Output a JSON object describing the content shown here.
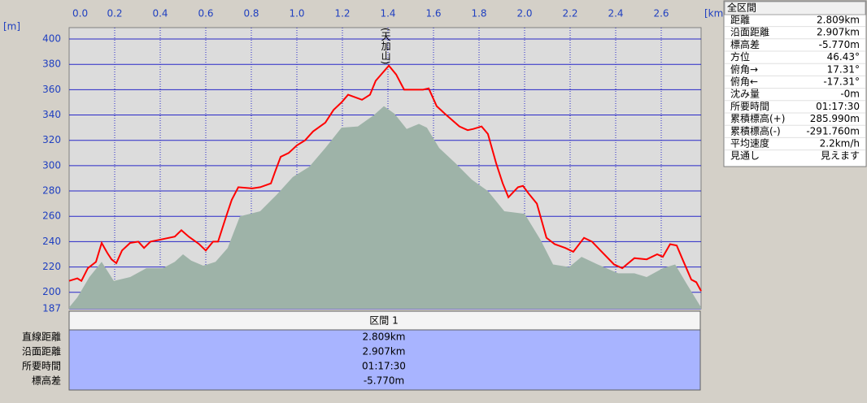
{
  "chart_data": {
    "type": "profile",
    "x_unit": "[km]",
    "y_unit": "[m]",
    "xlim": [
      0,
      2.775
    ],
    "ylim": [
      187,
      409
    ],
    "xticks": [
      {
        "value": 0,
        "label": "0.0"
      },
      0.2,
      0.4,
      0.6,
      0.8,
      {
        "value": 1,
        "label": "1.0"
      },
      1.2,
      1.4,
      1.6,
      1.8,
      {
        "value": 2,
        "label": "2.0"
      },
      2.2,
      2.4,
      2.6
    ],
    "yticks": [
      187,
      200,
      220,
      240,
      260,
      280,
      300,
      320,
      340,
      360,
      380,
      400
    ],
    "grid": true,
    "annotations": [
      {
        "text": "(天加山)",
        "x": 1.404,
        "y": 379
      }
    ],
    "series": [
      {
        "type": "area",
        "color": "#9eb3a8",
        "x": [
          0,
          0.036,
          0.089,
          0.143,
          0.196,
          0.268,
          0.339,
          0.411,
          0.464,
          0.5,
          0.536,
          0.589,
          0.643,
          0.696,
          0.75,
          0.839,
          0.911,
          0.982,
          1.054,
          1.125,
          1.196,
          1.268,
          1.339,
          1.382,
          1.429,
          1.482,
          1.536,
          1.571,
          1.625,
          1.696,
          1.768,
          1.839,
          1.911,
          2.0,
          2.071,
          2.125,
          2.196,
          2.25,
          2.321,
          2.411,
          2.482,
          2.536,
          2.607,
          2.661,
          2.714,
          2.775
        ],
        "values": [
          188,
          196,
          212,
          224,
          209,
          212,
          219,
          219,
          224,
          230,
          225,
          221,
          224,
          235,
          260,
          264,
          277,
          291,
          299,
          314,
          330,
          331,
          340,
          347,
          341,
          329,
          333,
          330,
          314,
          302,
          289,
          280,
          264,
          262,
          241,
          222,
          220,
          228,
          222,
          215,
          215,
          212,
          219,
          222,
          206,
          188
        ]
      },
      {
        "type": "line",
        "color": "#ff0000",
        "x": [
          0,
          0.036,
          0.054,
          0.082,
          0.118,
          0.143,
          0.168,
          0.186,
          0.207,
          0.232,
          0.268,
          0.304,
          0.329,
          0.357,
          0.411,
          0.464,
          0.493,
          0.525,
          0.571,
          0.6,
          0.632,
          0.654,
          0.686,
          0.714,
          0.743,
          0.804,
          0.839,
          0.886,
          0.904,
          0.929,
          0.964,
          1.0,
          1.036,
          1.071,
          1.125,
          1.161,
          1.196,
          1.225,
          1.286,
          1.321,
          1.346,
          1.375,
          1.404,
          1.436,
          1.471,
          1.554,
          1.579,
          1.614,
          1.65,
          1.714,
          1.75,
          1.775,
          1.811,
          1.839,
          1.875,
          1.904,
          1.929,
          1.971,
          1.993,
          2.018,
          2.054,
          2.096,
          2.132,
          2.179,
          2.214,
          2.261,
          2.296,
          2.339,
          2.393,
          2.429,
          2.482,
          2.536,
          2.582,
          2.607,
          2.639,
          2.668,
          2.696,
          2.732,
          2.754,
          2.775
        ],
        "values": [
          209,
          211,
          209,
          219,
          224,
          239,
          231,
          226,
          223,
          233,
          239,
          240,
          235,
          240,
          242,
          244,
          249,
          244,
          238,
          233,
          240,
          240,
          258,
          273,
          283,
          282,
          283,
          286,
          295,
          307,
          310,
          316,
          320,
          327,
          334,
          344,
          350,
          356,
          352,
          356,
          367,
          373,
          379,
          372,
          360,
          360,
          361,
          347,
          341,
          331,
          328,
          329,
          331,
          325,
          302,
          286,
          275,
          283,
          284,
          278,
          270,
          243,
          238,
          235,
          232,
          243,
          240,
          232,
          222,
          219,
          227,
          226,
          230,
          228,
          238,
          237,
          225,
          210,
          208,
          201
        ]
      }
    ]
  },
  "summary": {
    "title": "全区間",
    "rows": [
      [
        "距離",
        "2.809km"
      ],
      [
        "沿面距離",
        "2.907km"
      ],
      [
        "標高差",
        "-5.770m"
      ],
      [
        "方位",
        "46.43°"
      ],
      [
        "俯角→",
        "17.31°"
      ],
      [
        "俯角←",
        "-17.31°"
      ],
      [
        "沈み量",
        "-0m"
      ],
      [
        "所要時間",
        "01:17:30"
      ],
      [
        "累積標高(+)",
        "285.990m"
      ],
      [
        "累積標高(-)",
        "-291.760m"
      ],
      [
        "平均速度",
        "2.2km/h"
      ],
      [
        "見通し",
        "見えます"
      ]
    ]
  },
  "section": {
    "header": "区間 1",
    "rows": [
      [
        "直線距離",
        "2.809km"
      ],
      [
        "沿面距離",
        "2.907km"
      ],
      [
        "所要時間",
        "01:17:30"
      ],
      [
        "標高差",
        "-5.770m"
      ]
    ]
  }
}
